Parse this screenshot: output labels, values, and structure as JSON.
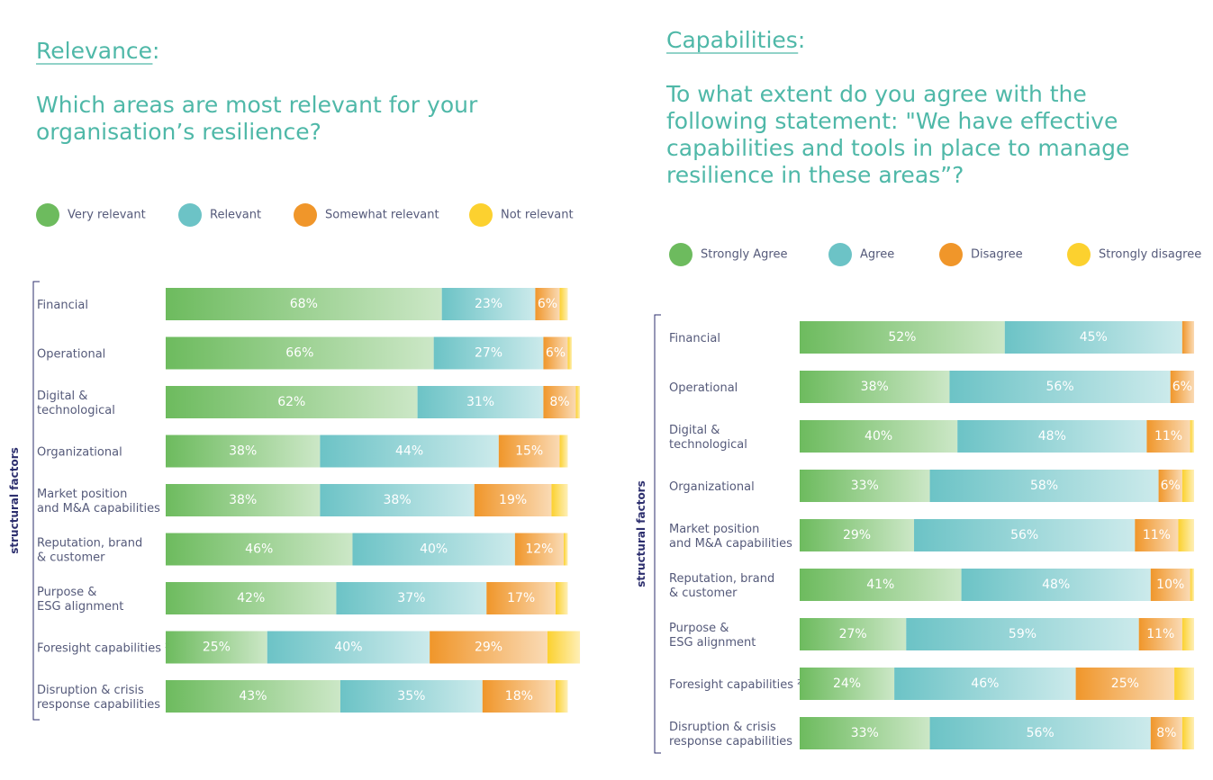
{
  "chart_data": [
    {
      "type": "stacked-bar-horizontal",
      "title": "Relevance:",
      "subtitle": "Which areas  are most relevant for your\norganisation’s resilience?",
      "y_label": "structural factors",
      "categories": [
        "Financial",
        "Operational",
        "Digital &\ntechnological",
        "Organizational",
        "Market position\nand M&A capabilities",
        "Reputation, brand\n&  customer",
        "Purpose &\nESG alignment",
        "Foresight capabilities ²",
        "Disruption & crisis\nresponse capabilities"
      ],
      "xlim": [
        0,
        102
      ],
      "series": [
        {
          "name": "Very relevant",
          "color": "#6dbb5e",
          "values": [
            68,
            66,
            62,
            38,
            38,
            46,
            42,
            25,
            43
          ],
          "value_labels": [
            "68%",
            "66%",
            "62%",
            "38%",
            "38%",
            "46%",
            "42%",
            "25%",
            "43%"
          ]
        },
        {
          "name": "Relevant",
          "color": "#6cc3c6",
          "values": [
            23,
            27,
            31,
            44,
            38,
            40,
            37,
            40,
            35
          ],
          "value_labels": [
            "23%",
            "27%",
            "31%",
            "44%",
            "38%",
            "40%",
            "37%",
            "40%",
            "35%"
          ]
        },
        {
          "name": "Somewhat relevant",
          "color": "#f0962a",
          "values": [
            6,
            6,
            8,
            15,
            19,
            12,
            17,
            29,
            18
          ],
          "value_labels": [
            "6%",
            "6%",
            "8%",
            "15%",
            "19%",
            "12%",
            "17%",
            "29%",
            "18%"
          ]
        },
        {
          "name": "Not relevant",
          "color": "#fcd12f",
          "values": [
            2,
            1,
            1,
            2,
            4,
            1,
            3,
            8,
            3
          ]
        }
      ]
    },
    {
      "type": "stacked-bar-horizontal",
      "title": "Capabilities:",
      "subtitle": "To what extent do you agree with the\nfollowing statement: \"We have effective\ncapabilities and tools in place to manage\nresilience in these areas”?",
      "y_label": "structural factors",
      "categories": [
        "Financial",
        "Operational",
        "Digital &\ntechnological",
        "Organizational",
        "Market position\nand M&A capabilities",
        "Reputation, brand\n&  customer",
        "Purpose &\nESG alignment",
        "Foresight capabilities ²",
        "Disruption & crisis\nresponse capabilities"
      ],
      "xlim": [
        0,
        102
      ],
      "series": [
        {
          "name": "Strongly Agree",
          "color": "#6dbb5e",
          "values": [
            52,
            38,
            40,
            33,
            29,
            41,
            27,
            24,
            33
          ],
          "value_labels": [
            "52%",
            "38%",
            "40%",
            "33%",
            "29%",
            "41%",
            "27%",
            "24%",
            "33%"
          ]
        },
        {
          "name": "Agree",
          "color": "#6cc3c6",
          "values": [
            45,
            56,
            48,
            58,
            56,
            48,
            59,
            46,
            56
          ],
          "value_labels": [
            "45%",
            "56%",
            "48%",
            "58%",
            "56%",
            "48%",
            "59%",
            "46%",
            "56%"
          ]
        },
        {
          "name": "Disagree",
          "color": "#f0962a",
          "values": [
            3,
            6,
            11,
            6,
            11,
            10,
            11,
            25,
            8
          ],
          "value_labels": [
            null,
            "6%",
            "11%",
            "6%",
            "11%",
            "10%",
            "11%",
            "25%",
            "8%"
          ]
        },
        {
          "name": "Strongly disagree",
          "color": "#fcd12f",
          "values": [
            0,
            0,
            1,
            3,
            4,
            1,
            3,
            5,
            3
          ]
        }
      ]
    }
  ]
}
